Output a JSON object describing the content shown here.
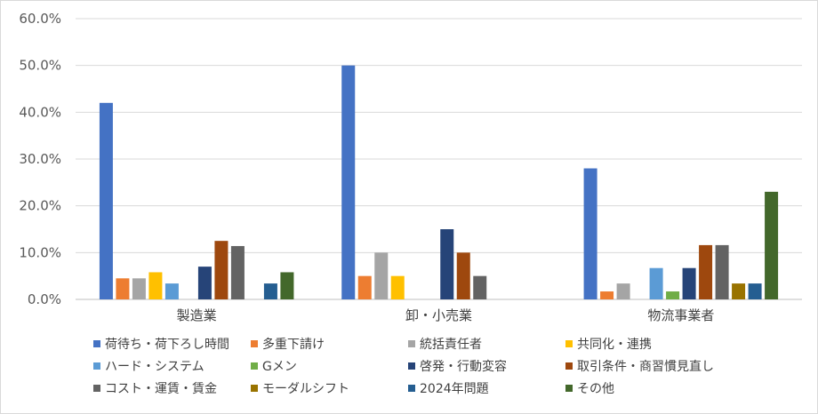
{
  "chart_data": {
    "type": "bar",
    "categories": [
      "製造業",
      "卸・小売業",
      "物流事業者"
    ],
    "ylim": [
      0,
      0.6
    ],
    "yticks": [
      "0.0%",
      "10.0%",
      "20.0%",
      "30.0%",
      "40.0%",
      "50.0%",
      "60.0%"
    ],
    "grid": true,
    "legend_position": "bottom",
    "series": [
      {
        "name": "荷待ち・荷下ろし時間",
        "color": "#4472c4",
        "values": [
          0.42,
          0.5,
          0.28
        ]
      },
      {
        "name": "多重下請け",
        "color": "#ed7d31",
        "values": [
          0.045,
          0.05,
          0.017
        ]
      },
      {
        "name": "統括責任者",
        "color": "#a5a5a5",
        "values": [
          0.045,
          0.1,
          0.034
        ]
      },
      {
        "name": "共同化・連携",
        "color": "#ffc000",
        "values": [
          0.058,
          0.05,
          0
        ]
      },
      {
        "name": "ハード・システム",
        "color": "#5b9bd5",
        "values": [
          0.034,
          0,
          0.067
        ]
      },
      {
        "name": "Gメン",
        "color": "#70ad47",
        "values": [
          0,
          0,
          0.017
        ]
      },
      {
        "name": "啓発・行動変容",
        "color": "#264478",
        "values": [
          0.07,
          0.15,
          0.067
        ]
      },
      {
        "name": "取引条件・商習慣見直し",
        "color": "#9e480e",
        "values": [
          0.125,
          0.1,
          0.116
        ]
      },
      {
        "name": "コスト・運賃・賃金",
        "color": "#636363",
        "values": [
          0.114,
          0.05,
          0.116
        ]
      },
      {
        "name": "モーダルシフト",
        "color": "#997300",
        "values": [
          0,
          0,
          0.034
        ]
      },
      {
        "name": "2024年問題",
        "color": "#255e91",
        "values": [
          0.034,
          0,
          0.034
        ]
      },
      {
        "name": "その他",
        "color": "#43682b",
        "values": [
          0.058,
          0,
          0.23
        ]
      }
    ]
  }
}
